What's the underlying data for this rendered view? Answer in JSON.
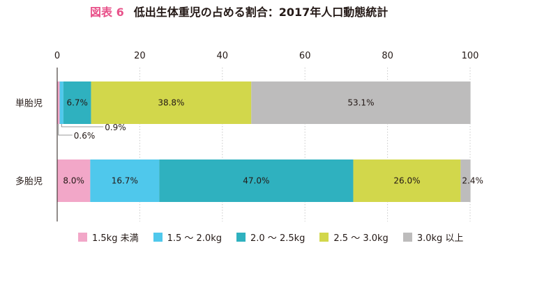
{
  "title": {
    "figure_label": "図表 6",
    "text": "低出生体重児の占める割合：2017年人口動態統計"
  },
  "colors": {
    "title_accent": "#e8528a",
    "series": [
      "#f2a7c8",
      "#4fc8ec",
      "#2fb1bf",
      "#d2d74b",
      "#bdbcbc"
    ],
    "grid": "#c9c9c9",
    "axis": "#231815"
  },
  "chart_data": {
    "type": "bar",
    "orientation": "horizontal",
    "stacked": true,
    "title": "低出生体重児の占める割合：2017年人口動態統計",
    "categories": [
      "単胎児",
      "多胎児"
    ],
    "xlim": [
      0,
      100
    ],
    "xticks": [
      "0",
      "20",
      "40",
      "60",
      "80",
      "100"
    ],
    "grid": true,
    "legend_position": "bottom",
    "series": [
      {
        "name": "1.5kg 未満",
        "values": [
          0.6,
          8.0
        ],
        "labels": [
          "0.6%",
          "8.0%"
        ]
      },
      {
        "name": "1.5 ～ 2.0kg",
        "values": [
          0.9,
          16.7
        ],
        "labels": [
          "0.9%",
          "16.7%"
        ]
      },
      {
        "name": "2.0 ～ 2.5kg",
        "values": [
          6.7,
          47.0
        ],
        "labels": [
          "6.7%",
          "47.0%"
        ]
      },
      {
        "name": "2.5 ～ 3.0kg",
        "values": [
          38.8,
          26.0
        ],
        "labels": [
          "38.8%",
          "26.0%"
        ]
      },
      {
        "name": "3.0kg 以上",
        "values": [
          53.1,
          2.4
        ],
        "labels": [
          "53.1%",
          "2.4%"
        ]
      }
    ]
  }
}
